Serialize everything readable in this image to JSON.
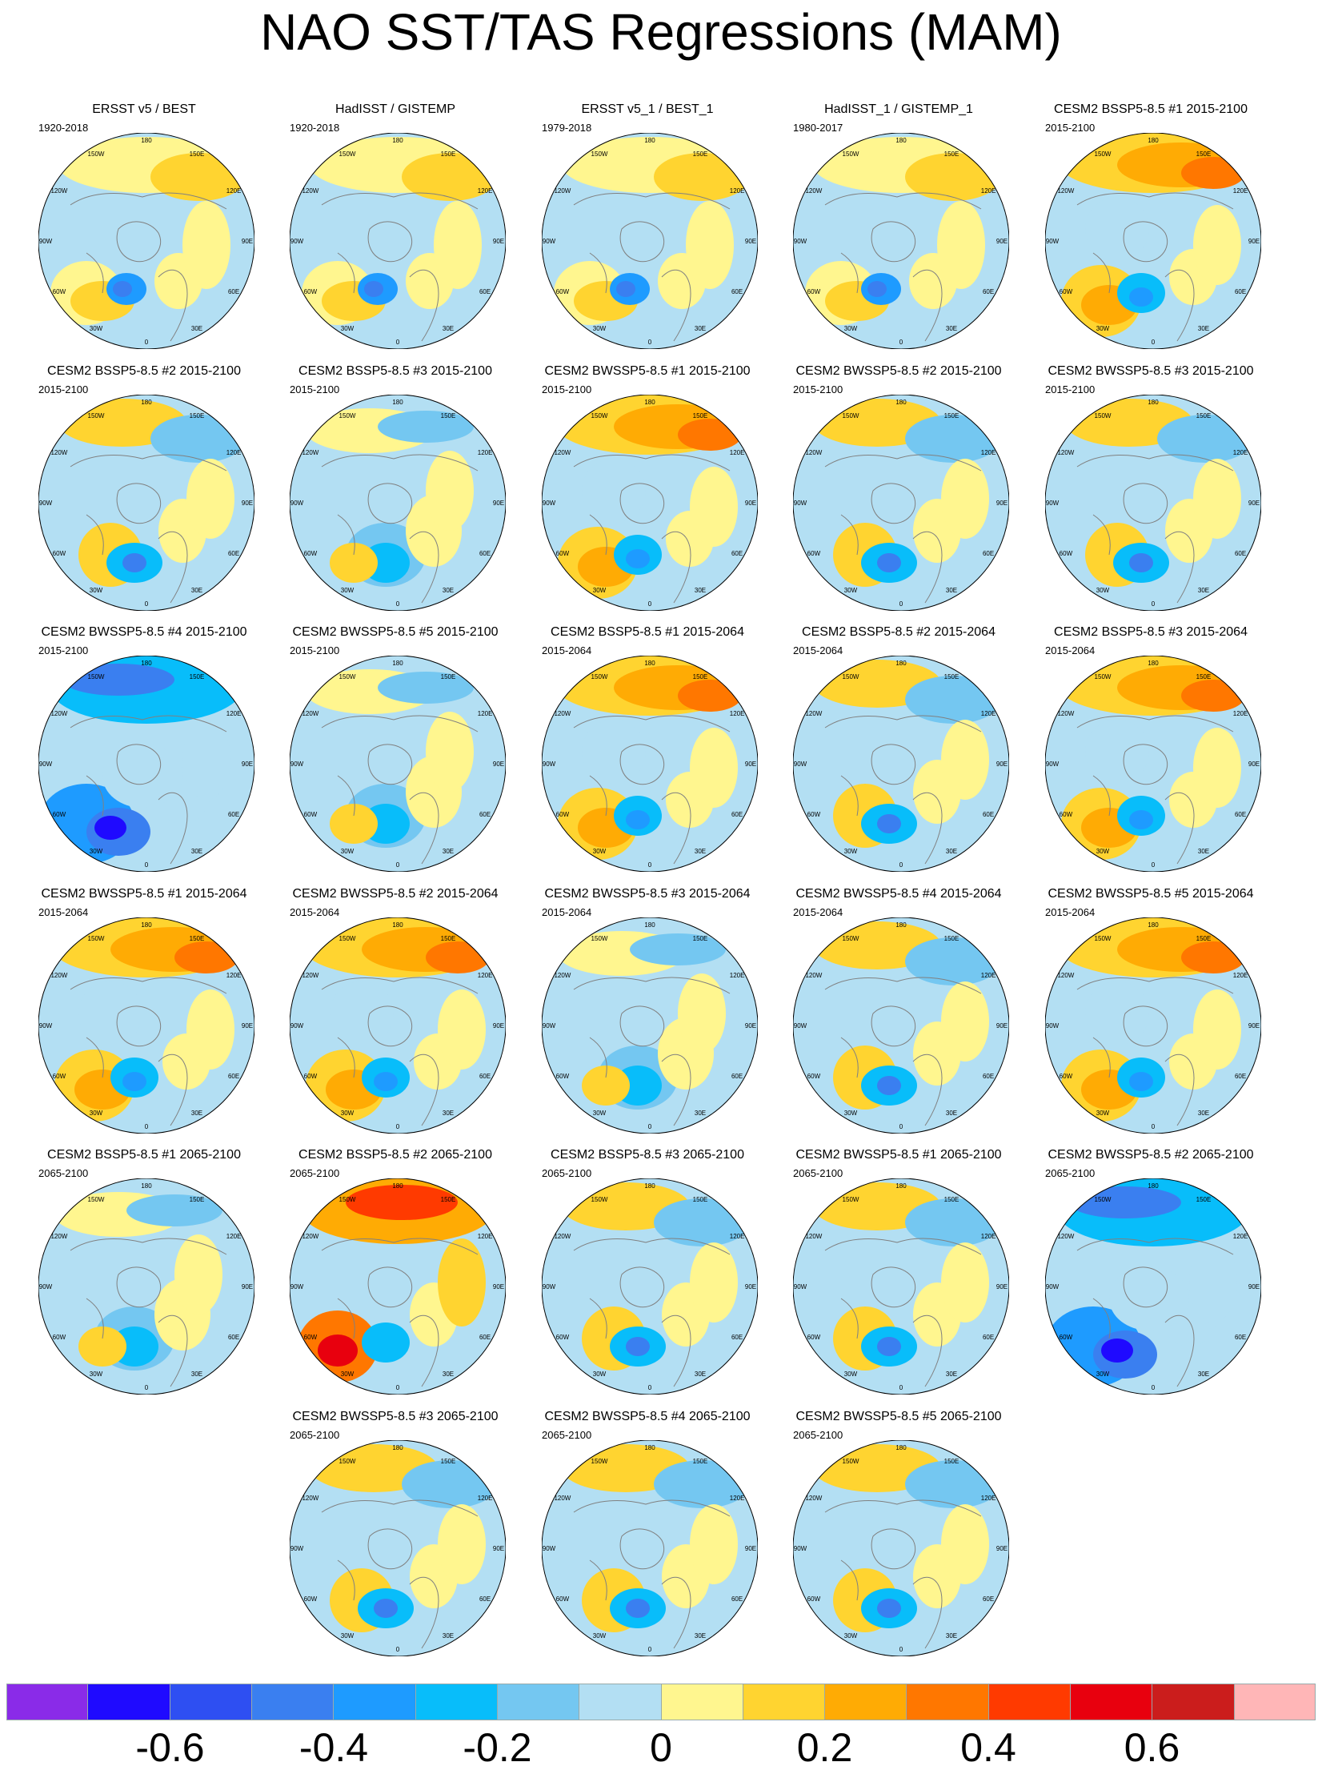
{
  "title": "NAO SST/TAS Regressions (MAM)",
  "lon_labels": [
    "180",
    "150E",
    "120E",
    "90E",
    "60E",
    "30E",
    "0",
    "30W",
    "60W",
    "90W",
    "120W",
    "150W"
  ],
  "panels": [
    {
      "title": "ERSST v5 / BEST",
      "period": "1920-2018",
      "pattern": "obs"
    },
    {
      "title": "HadISST / GISTEMP",
      "period": "1920-2018",
      "pattern": "obs"
    },
    {
      "title": "ERSST v5_1 / BEST_1",
      "period": "1979-2018",
      "pattern": "obs"
    },
    {
      "title": "HadISST_1 / GISTEMP_1",
      "period": "1980-2017",
      "pattern": "obs"
    },
    {
      "title": "CESM2 BSSP5-8.5 #1 2015-2100",
      "period": "2015-2100",
      "pattern": "warm-north"
    },
    {
      "title": "CESM2 BSSP5-8.5 #2 2015-2100",
      "period": "2015-2100",
      "pattern": "mixed"
    },
    {
      "title": "CESM2 BSSP5-8.5 #3 2015-2100",
      "period": "2015-2100",
      "pattern": "cool"
    },
    {
      "title": "CESM2 BWSSP5-8.5 #1 2015-2100",
      "period": "2015-2100",
      "pattern": "warm-north"
    },
    {
      "title": "CESM2 BWSSP5-8.5 #2 2015-2100",
      "period": "2015-2100",
      "pattern": "mixed"
    },
    {
      "title": "CESM2 BWSSP5-8.5 #3 2015-2100",
      "period": "2015-2100",
      "pattern": "mixed"
    },
    {
      "title": "CESM2 BWSSP5-8.5 #4 2015-2100",
      "period": "2015-2100",
      "pattern": "cold"
    },
    {
      "title": "CESM2 BWSSP5-8.5 #5 2015-2100",
      "period": "2015-2100",
      "pattern": "cool"
    },
    {
      "title": "CESM2 BSSP5-8.5 #1 2015-2064",
      "period": "2015-2064",
      "pattern": "warm-north"
    },
    {
      "title": "CESM2 BSSP5-8.5 #2 2015-2064",
      "period": "2015-2064",
      "pattern": "mixed"
    },
    {
      "title": "CESM2 BSSP5-8.5 #3 2015-2064",
      "period": "2015-2064",
      "pattern": "warm-north"
    },
    {
      "title": "CESM2 BWSSP5-8.5 #1 2015-2064",
      "period": "2015-2064",
      "pattern": "warm-north"
    },
    {
      "title": "CESM2 BWSSP5-8.5 #2 2015-2064",
      "period": "2015-2064",
      "pattern": "warm-north"
    },
    {
      "title": "CESM2 BWSSP5-8.5 #3 2015-2064",
      "period": "2015-2064",
      "pattern": "cool"
    },
    {
      "title": "CESM2 BWSSP5-8.5 #4 2015-2064",
      "period": "2015-2064",
      "pattern": "mixed"
    },
    {
      "title": "CESM2 BWSSP5-8.5 #5 2015-2064",
      "period": "2015-2064",
      "pattern": "warm-north"
    },
    {
      "title": "CESM2 BSSP5-8.5 #1 2065-2100",
      "period": "2065-2100",
      "pattern": "cool"
    },
    {
      "title": "CESM2 BSSP5-8.5 #2 2065-2100",
      "period": "2065-2100",
      "pattern": "hot"
    },
    {
      "title": "CESM2 BSSP5-8.5 #3 2065-2100",
      "period": "2065-2100",
      "pattern": "mixed"
    },
    {
      "title": "CESM2 BWSSP5-8.5 #1 2065-2100",
      "period": "2065-2100",
      "pattern": "mixed"
    },
    {
      "title": "CESM2 BWSSP5-8.5 #2 2065-2100",
      "period": "2065-2100",
      "pattern": "cold"
    },
    {
      "title": "CESM2 BWSSP5-8.5 #3 2065-2100",
      "period": "2065-2100",
      "pattern": "mixed"
    },
    {
      "title": "CESM2 BWSSP5-8.5 #4 2065-2100",
      "period": "2065-2100",
      "pattern": "mixed"
    },
    {
      "title": "CESM2 BWSSP5-8.5 #5 2065-2100",
      "period": "2065-2100",
      "pattern": "mixed"
    }
  ],
  "colorbar": {
    "colors": [
      "#8a2be8",
      "#1f0aff",
      "#2e4ff2",
      "#3a7ff0",
      "#1e9bff",
      "#08bdfa",
      "#74c7f1",
      "#b3dff3",
      "#fff68f",
      "#ffd430",
      "#ffab04",
      "#ff7700",
      "#ff3a00",
      "#e8000e",
      "#cb1d1c",
      "#ffb6b7"
    ],
    "labels": [
      "-0.6",
      "-0.4",
      "-0.2",
      "0",
      "0.2",
      "0.4",
      "0.6"
    ]
  },
  "palette": {
    "land_outline": "#808080",
    "neutral_cool": "#b3dff3",
    "neutral_warm": "#fff68f"
  }
}
